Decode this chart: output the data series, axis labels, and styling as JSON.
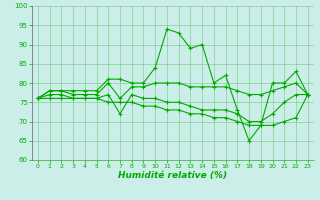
{
  "x": [
    0,
    1,
    2,
    3,
    4,
    5,
    6,
    7,
    8,
    9,
    10,
    11,
    12,
    13,
    14,
    15,
    16,
    17,
    18,
    19,
    20,
    21,
    22,
    23
  ],
  "line_max": [
    76,
    78,
    78,
    78,
    78,
    78,
    81,
    81,
    80,
    80,
    84,
    94,
    93,
    89,
    90,
    80,
    82,
    73,
    65,
    69,
    80,
    80,
    83,
    77
  ],
  "line_mean": [
    76,
    78,
    78,
    77,
    77,
    77,
    80,
    76,
    79,
    79,
    80,
    80,
    80,
    79,
    79,
    79,
    79,
    78,
    77,
    77,
    78,
    79,
    80,
    77
  ],
  "line_min": [
    76,
    77,
    77,
    76,
    76,
    76,
    77,
    72,
    77,
    76,
    76,
    75,
    75,
    74,
    73,
    73,
    73,
    72,
    70,
    70,
    72,
    75,
    77,
    77
  ],
  "line_trend": [
    76,
    76,
    76,
    76,
    76,
    76,
    75,
    75,
    75,
    74,
    74,
    73,
    73,
    72,
    72,
    71,
    71,
    70,
    69,
    69,
    69,
    70,
    71,
    77
  ],
  "bg_color": "#cceee8",
  "grid_color": "#33aa33",
  "line_color": "#00aa00",
  "xlabel": "Humidité relative (%)",
  "ylim": [
    60,
    100
  ],
  "xlim_min": -0.5,
  "xlim_max": 23.5,
  "yticks": [
    60,
    65,
    70,
    75,
    80,
    85,
    90,
    95,
    100
  ],
  "xticks": [
    0,
    1,
    2,
    3,
    4,
    5,
    6,
    7,
    8,
    9,
    10,
    11,
    12,
    13,
    14,
    15,
    16,
    17,
    18,
    19,
    20,
    21,
    22,
    23
  ]
}
